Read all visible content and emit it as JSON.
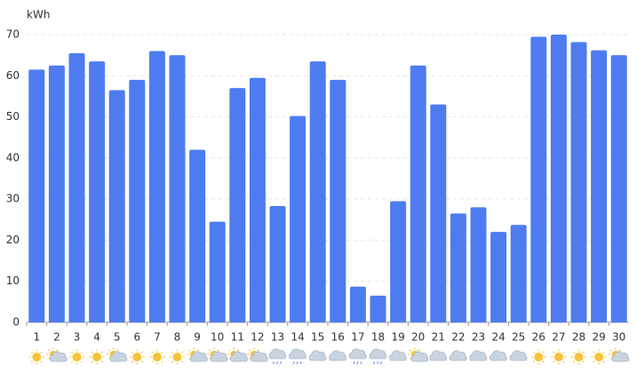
{
  "chart_data": {
    "type": "bar",
    "y_label": "kWh",
    "categories": [
      "1",
      "2",
      "3",
      "4",
      "5",
      "6",
      "7",
      "8",
      "9",
      "10",
      "11",
      "12",
      "13",
      "14",
      "15",
      "16",
      "17",
      "18",
      "19",
      "20",
      "21",
      "22",
      "23",
      "24",
      "25",
      "26",
      "27",
      "28",
      "29",
      "30"
    ],
    "values": [
      61.5,
      62.5,
      65.5,
      63.5,
      56.5,
      59,
      66,
      65,
      42,
      24.5,
      57,
      59.5,
      28.3,
      50.2,
      63.5,
      59,
      8.7,
      6.5,
      29.5,
      62.5,
      53,
      26.5,
      28,
      22,
      23.7,
      69.5,
      70,
      68.2,
      66.2,
      65
    ],
    "color": "#4e7cf0",
    "ylim": [
      0,
      70
    ],
    "yticks": [
      0,
      10,
      20,
      30,
      40,
      50,
      60,
      70
    ],
    "grid": true
  }
}
